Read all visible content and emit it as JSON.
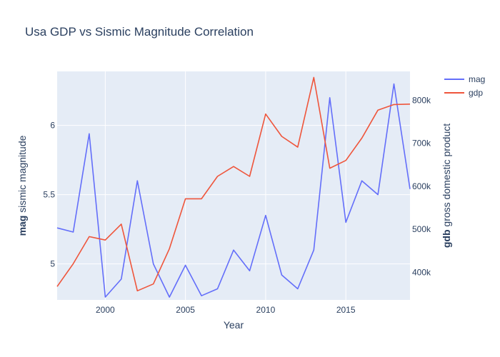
{
  "chart_data": {
    "type": "line",
    "title": "Usa GDP vs Sismic Magnitude Correlation",
    "xlabel": "Year",
    "ylabel_left_bold": "mag",
    "ylabel_left_rest": " sismic magnitude",
    "ylabel_right_bold": "gdb",
    "ylabel_right_rest": " gross domestic product",
    "xlim": [
      1997,
      2019
    ],
    "ylim_left": [
      4.74,
      6.39
    ],
    "ylim_right": [
      336000,
      867000
    ],
    "x_ticks": [
      2000,
      2005,
      2010,
      2015
    ],
    "y_ticks_left": [
      {
        "value": 5,
        "label": "5"
      },
      {
        "value": 5.5,
        "label": "5.5"
      },
      {
        "value": 6,
        "label": "6"
      }
    ],
    "y_ticks_right": [
      {
        "value": 400000,
        "label": "400k"
      },
      {
        "value": 500000,
        "label": "500k"
      },
      {
        "value": 600000,
        "label": "600k"
      },
      {
        "value": 700000,
        "label": "700k"
      },
      {
        "value": 800000,
        "label": "800k"
      }
    ],
    "x": [
      1997,
      1998,
      1999,
      2000,
      2001,
      2002,
      2003,
      2004,
      2005,
      2006,
      2007,
      2008,
      2009,
      2010,
      2011,
      2012,
      2013,
      2014,
      2015,
      2016,
      2017,
      2018,
      2019
    ],
    "series": [
      {
        "name": "mag",
        "axis": "left",
        "color": "#636efa",
        "values": [
          5.26,
          5.23,
          5.94,
          4.76,
          4.89,
          5.6,
          5.0,
          4.76,
          4.99,
          4.77,
          4.82,
          5.1,
          4.95,
          5.35,
          4.92,
          4.82,
          5.1,
          6.2,
          5.3,
          5.6,
          5.5,
          6.3,
          5.54
        ]
      },
      {
        "name": "gdp",
        "axis": "right",
        "color": "#ef553b",
        "values": [
          367000,
          420000,
          483000,
          475000,
          512000,
          357000,
          373000,
          455000,
          571000,
          571000,
          623000,
          646000,
          623000,
          768000,
          716000,
          691000,
          853000,
          642000,
          660000,
          712000,
          777000,
          790000,
          791000
        ]
      }
    ],
    "legend_position": "top-right",
    "grid": true
  }
}
